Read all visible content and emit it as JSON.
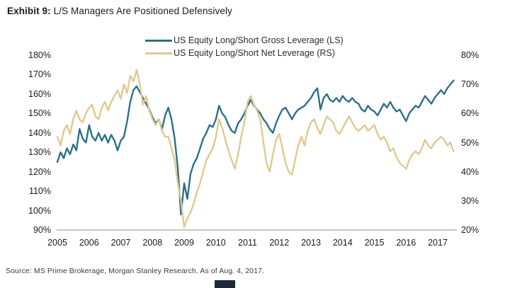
{
  "header": {
    "exhibit_label": "Exhibit 9:",
    "title": "L/S Managers Are Positioned Defensively"
  },
  "footer": {
    "source": "Source: MS Prime Brokerage, Morgan Stanley Research. As of Aug. 4, 2017."
  },
  "colors": {
    "gross_line": "#2e6f8a",
    "net_line": "#e1c890",
    "axis_line": "#8c8c8c",
    "text": "#1a1a1a"
  },
  "chart_data": {
    "type": "line",
    "title": "L/S Managers Are Positioned Defensively",
    "grid": false,
    "legend_position": "top-center",
    "x_axis": {
      "ticks": [
        2005,
        2006,
        2007,
        2008,
        2009,
        2010,
        2011,
        2012,
        2013,
        2014,
        2015,
        2016,
        2017
      ],
      "range": [
        2004.9,
        2017.6
      ]
    },
    "left_axis": {
      "tick_values": [
        180,
        170,
        160,
        150,
        140,
        130,
        120,
        110,
        100,
        90
      ],
      "tick_format": "percent",
      "range": [
        90,
        180
      ]
    },
    "right_axis": {
      "tick_values": [
        80,
        70,
        60,
        50,
        40,
        30,
        20
      ],
      "tick_format": "percent",
      "range": [
        20,
        80
      ]
    },
    "x": [
      2005.0,
      2005.1,
      2005.2,
      2005.3,
      2005.4,
      2005.5,
      2005.6,
      2005.7,
      2005.8,
      2005.9,
      2006.0,
      2006.1,
      2006.2,
      2006.3,
      2006.4,
      2006.5,
      2006.6,
      2006.7,
      2006.8,
      2006.9,
      2007.0,
      2007.1,
      2007.2,
      2007.3,
      2007.4,
      2007.5,
      2007.6,
      2007.7,
      2007.8,
      2007.9,
      2008.0,
      2008.1,
      2008.2,
      2008.3,
      2008.4,
      2008.5,
      2008.6,
      2008.7,
      2008.8,
      2008.9,
      2009.0,
      2009.1,
      2009.2,
      2009.3,
      2009.4,
      2009.5,
      2009.6,
      2009.7,
      2009.8,
      2009.9,
      2010.0,
      2010.1,
      2010.2,
      2010.3,
      2010.4,
      2010.5,
      2010.6,
      2010.7,
      2010.8,
      2010.9,
      2011.0,
      2011.1,
      2011.2,
      2011.3,
      2011.4,
      2011.5,
      2011.6,
      2011.7,
      2011.8,
      2011.9,
      2012.0,
      2012.1,
      2012.2,
      2012.3,
      2012.4,
      2012.5,
      2012.6,
      2012.7,
      2012.8,
      2012.9,
      2013.0,
      2013.1,
      2013.2,
      2013.3,
      2013.4,
      2013.5,
      2013.6,
      2013.7,
      2013.8,
      2013.9,
      2014.0,
      2014.1,
      2014.2,
      2014.3,
      2014.4,
      2014.5,
      2014.6,
      2014.7,
      2014.8,
      2014.9,
      2015.0,
      2015.1,
      2015.2,
      2015.3,
      2015.4,
      2015.5,
      2015.6,
      2015.7,
      2015.8,
      2015.9,
      2016.0,
      2016.1,
      2016.2,
      2016.3,
      2016.4,
      2016.5,
      2016.6,
      2016.7,
      2016.8,
      2016.9,
      2017.0,
      2017.1,
      2017.2,
      2017.3,
      2017.4,
      2017.5
    ],
    "series": [
      {
        "key": "gross",
        "name": "US Equity Long/Short Gross Leverage (LS)",
        "axis": "left",
        "color": "#2e6f8a",
        "values": [
          125,
          130,
          127,
          132,
          129,
          134,
          131,
          142,
          137,
          135,
          144,
          138,
          136,
          140,
          136,
          139,
          135,
          139,
          136,
          131,
          136,
          138,
          146,
          156,
          162,
          164,
          161,
          158,
          155,
          152,
          148,
          145,
          147,
          142,
          149,
          153,
          147,
          137,
          122,
          98,
          114,
          106,
          119,
          124,
          127,
          132,
          137,
          140,
          144,
          143,
          147,
          154,
          150,
          148,
          144,
          141,
          140,
          145,
          147,
          150,
          154,
          157,
          154,
          152,
          150,
          147,
          145,
          142,
          140,
          145,
          149,
          152,
          153,
          150,
          147,
          150,
          152,
          153,
          154,
          156,
          158,
          161,
          163,
          152,
          158,
          160,
          157,
          156,
          158,
          156,
          159,
          157,
          156,
          158,
          156,
          155,
          152,
          151,
          154,
          152,
          151,
          149,
          152,
          155,
          153,
          156,
          153,
          151,
          152,
          149,
          146,
          150,
          152,
          154,
          153,
          156,
          159,
          157,
          155,
          158,
          160,
          162,
          160,
          163,
          165,
          167
        ]
      },
      {
        "key": "net",
        "name": "US Equity Long/Short Net Leverage (RS)",
        "axis": "right",
        "color": "#e1c890",
        "values": [
          52,
          49,
          54,
          56,
          53,
          58,
          61,
          58,
          57,
          60,
          62,
          63,
          59,
          58,
          62,
          64,
          61,
          64,
          66,
          68,
          65,
          70,
          67,
          73,
          71,
          75,
          70,
          63,
          66,
          61,
          58,
          56,
          58,
          54,
          52,
          52,
          48,
          44,
          36,
          30,
          21,
          24,
          26,
          29,
          33,
          36,
          40,
          44,
          46,
          48,
          52,
          58,
          55,
          51,
          47,
          44,
          41,
          46,
          52,
          57,
          64,
          66,
          63,
          61,
          58,
          50,
          43,
          40,
          46,
          51,
          53,
          48,
          43,
          40,
          39,
          44,
          49,
          52,
          49,
          54,
          57,
          58,
          55,
          53,
          56,
          59,
          58,
          57,
          54,
          53,
          55,
          57,
          59,
          57,
          55,
          54,
          55,
          56,
          54,
          55,
          56,
          53,
          51,
          52,
          50,
          47,
          48,
          45,
          43,
          42,
          41,
          44,
          46,
          47,
          46,
          48,
          51,
          49,
          48,
          50,
          51,
          52,
          51,
          49,
          50,
          47
        ]
      }
    ]
  }
}
